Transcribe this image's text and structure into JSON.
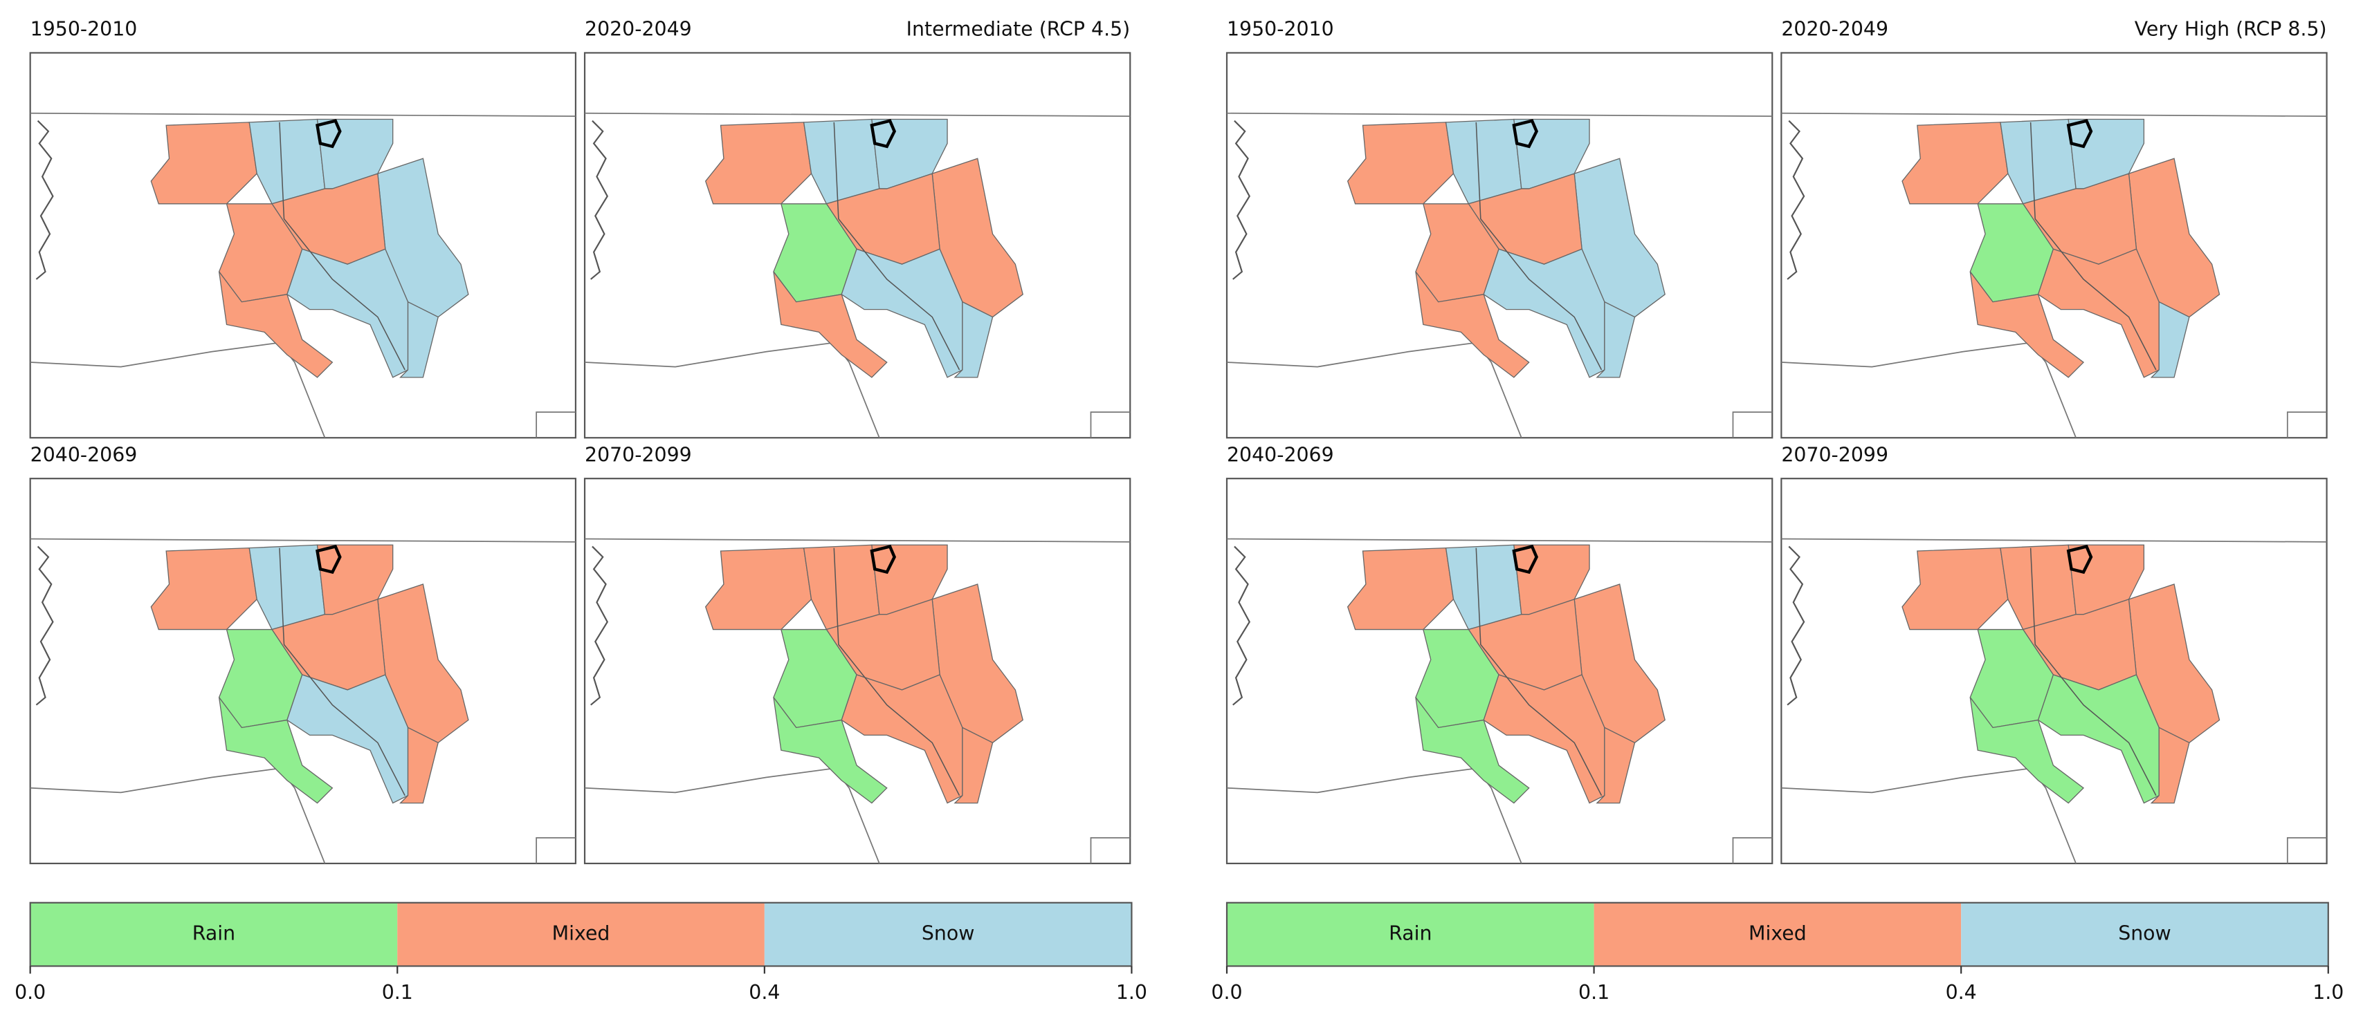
{
  "figures": [
    {
      "scenario": "Intermediate (RCP 4.5)",
      "panels": [
        {
          "title": "1950-2010"
        },
        {
          "title": "2020-2049"
        },
        {
          "title": "2040-2069"
        },
        {
          "title": "2070-2099"
        }
      ],
      "colorbar": {
        "categories": [
          "Rain",
          "Mixed",
          "Snow"
        ],
        "colors": [
          "#90ee90",
          "#fa9e7c",
          "#add8e6"
        ],
        "ticks": [
          {
            "value": 0,
            "label": "0.0"
          },
          0.1,
          0.4,
          {
            "value": 1,
            "label": "1.0"
          }
        ]
      }
    },
    {
      "scenario": "Very High (RCP 8.5)",
      "panels": [
        {
          "title": "1950-2010"
        },
        {
          "title": "2020-2049"
        },
        {
          "title": "2040-2069"
        },
        {
          "title": "2070-2099"
        }
      ],
      "colorbar": {
        "categories": [
          "Rain",
          "Mixed",
          "Snow"
        ],
        "colors": [
          "#90ee90",
          "#fa9e7c",
          "#add8e6"
        ],
        "ticks": [
          {
            "value": 0,
            "label": "0.0"
          },
          0.1,
          0.4,
          {
            "value": 1,
            "label": "1.0"
          }
        ]
      }
    }
  ]
}
